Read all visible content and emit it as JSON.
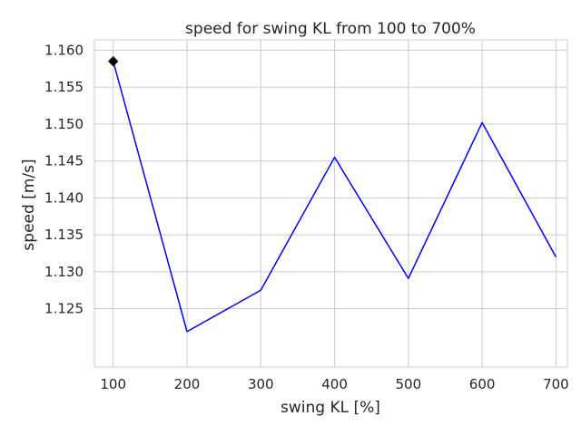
{
  "chart_data": {
    "type": "line",
    "title": "speed for swing KL from 100 to 700%",
    "xlabel": "swing KL [%]",
    "ylabel": "speed [m/s]",
    "x": [
      100,
      200,
      300,
      400,
      500,
      600,
      700
    ],
    "series": [
      {
        "values": [
          1.1585,
          1.1219,
          1.1275,
          1.1455,
          1.1291,
          1.1502,
          1.132
        ],
        "color": "#0000ff"
      }
    ],
    "highlight_point": {
      "x": 100,
      "y": 1.1585,
      "marker": "diamond",
      "color": "#000000"
    },
    "xticks": [
      100,
      200,
      300,
      400,
      500,
      600,
      700
    ],
    "yticks": [
      "1.125",
      "1.130",
      "1.135",
      "1.140",
      "1.145",
      "1.150",
      "1.155",
      "1.160"
    ],
    "xlim": [
      74.5,
      715.5
    ],
    "ylim": [
      1.1171,
      1.1614
    ],
    "grid": true,
    "colors": {
      "grid": "#cccccc",
      "spine": "#cccccc",
      "text": "#262626"
    }
  }
}
